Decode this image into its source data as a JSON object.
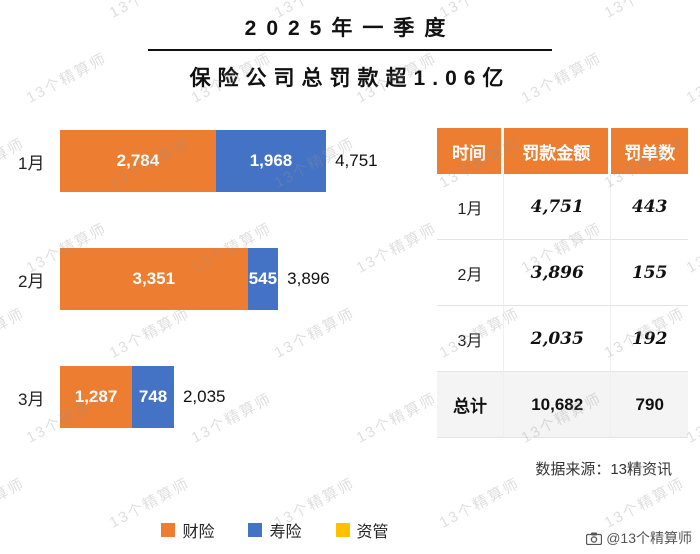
{
  "title": {
    "line1": "2025年一季度",
    "line2": "保险公司总罚款超1.06亿"
  },
  "watermark": "13个精算师",
  "chart_data": {
    "type": "bar",
    "orientation": "horizontal",
    "stacked": true,
    "categories": [
      "1月",
      "2月",
      "3月"
    ],
    "series": [
      {
        "name": "财险",
        "color": "#ED7D31",
        "values": [
          2784,
          3351,
          1287
        ]
      },
      {
        "name": "寿险",
        "color": "#4472C4",
        "values": [
          1968,
          545,
          748
        ]
      },
      {
        "name": "资管",
        "color": "#FFC000",
        "values": [
          0,
          0,
          0
        ]
      }
    ],
    "segment_labels": [
      [
        "2,784",
        "1,968"
      ],
      [
        "3,351",
        "545"
      ],
      [
        "1,287",
        "748"
      ]
    ],
    "totals": [
      4751,
      3896,
      2035
    ],
    "total_labels": [
      "4,751",
      "3,896",
      "2,035"
    ],
    "xlim": [
      0,
      5000
    ],
    "legend_position": "bottom"
  },
  "table": {
    "headers": [
      "时间",
      "罚款金额",
      "罚单数"
    ],
    "rows": [
      {
        "label": "1月",
        "amount": "4,751",
        "count": "443"
      },
      {
        "label": "2月",
        "amount": "3,896",
        "count": "155"
      },
      {
        "label": "3月",
        "amount": "2,035",
        "count": "192"
      }
    ],
    "total_row": {
      "label": "总计",
      "amount": "10,682",
      "count": "790"
    }
  },
  "source": "数据来源：13精资讯",
  "footer_badge": "@13个精算师",
  "colors": {
    "orange": "#ED7D31",
    "blue": "#4472C4",
    "yellow": "#FFC000",
    "table_header_bg": "#ED7D31"
  }
}
